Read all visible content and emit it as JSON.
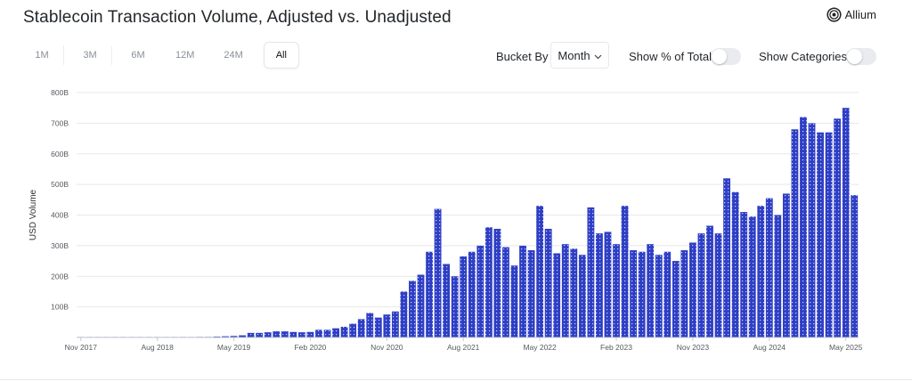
{
  "header": {
    "title": "Stablecoin Transaction Volume, Adjusted vs. Unadjusted",
    "brand": "Allium"
  },
  "toolbar": {
    "ranges": [
      "1M",
      "3M",
      "6M",
      "12M",
      "24M",
      "All"
    ],
    "active_range": "All",
    "bucket_label": "Bucket By",
    "bucket_value": "Month",
    "show_pct_label": "Show % of Total",
    "show_pct_on": false,
    "show_categories_label": "Show Categories",
    "show_categories_on": false
  },
  "colors": {
    "bar": "#2f3fc4",
    "bar_pattern_dot": "#c9d0ff",
    "grid": "#e6e8ec",
    "axis_text": "#555a60",
    "toggle_off": "#e9ebee"
  },
  "chart_data": {
    "type": "bar",
    "ylabel": "USD Volume",
    "xlabel": "",
    "y_tick_labels": [
      "100B",
      "200B",
      "300B",
      "400B",
      "500B",
      "600B",
      "700B",
      "800B"
    ],
    "y_ticks": [
      100,
      200,
      300,
      400,
      500,
      600,
      700,
      800
    ],
    "ylim": [
      0,
      800
    ],
    "unit": "B",
    "x_tick_labels": [
      "Nov 2017",
      "Aug 2018",
      "May 2019",
      "Feb 2020",
      "Nov 2020",
      "Aug 2021",
      "May 2022",
      "Feb 2023",
      "Nov 2023",
      "Aug 2024",
      "May 2025"
    ],
    "grid": true,
    "categories": [
      "Nov 2017",
      "Dec 2017",
      "Jan 2018",
      "Feb 2018",
      "Mar 2018",
      "Apr 2018",
      "May 2018",
      "Jun 2018",
      "Jul 2018",
      "Aug 2018",
      "Sep 2018",
      "Oct 2018",
      "Nov 2018",
      "Dec 2018",
      "Jan 2019",
      "Feb 2019",
      "Mar 2019",
      "Apr 2019",
      "May 2019",
      "Jun 2019",
      "Jul 2019",
      "Aug 2019",
      "Sep 2019",
      "Oct 2019",
      "Nov 2019",
      "Dec 2019",
      "Jan 2020",
      "Feb 2020",
      "Mar 2020",
      "Apr 2020",
      "May 2020",
      "Jun 2020",
      "Jul 2020",
      "Aug 2020",
      "Sep 2020",
      "Oct 2020",
      "Nov 2020",
      "Dec 2020",
      "Jan 2021",
      "Feb 2021",
      "Mar 2021",
      "Apr 2021",
      "May 2021",
      "Jun 2021",
      "Jul 2021",
      "Aug 2021",
      "Sep 2021",
      "Oct 2021",
      "Nov 2021",
      "Dec 2021",
      "Jan 2022",
      "Feb 2022",
      "Mar 2022",
      "Apr 2022",
      "May 2022",
      "Jun 2022",
      "Jul 2022",
      "Aug 2022",
      "Sep 2022",
      "Oct 2022",
      "Nov 2022",
      "Dec 2022",
      "Jan 2023",
      "Feb 2023",
      "Mar 2023",
      "Apr 2023",
      "May 2023",
      "Jun 2023",
      "Jul 2023",
      "Aug 2023",
      "Sep 2023",
      "Oct 2023",
      "Nov 2023",
      "Dec 2023",
      "Jan 2024",
      "Feb 2024",
      "Mar 2024",
      "Apr 2024",
      "May 2024",
      "Jun 2024",
      "Jul 2024",
      "Aug 2024",
      "Sep 2024",
      "Oct 2024",
      "Nov 2024",
      "Dec 2024",
      "Jan 2025",
      "Feb 2025",
      "Mar 2025",
      "Apr 2025",
      "May 2025",
      "Jun 2025"
    ],
    "values": [
      0.5,
      0.5,
      1,
      1,
      1,
      1,
      1,
      1,
      1,
      1,
      1,
      1,
      1,
      1,
      2,
      2,
      3,
      4,
      5,
      7,
      15,
      15,
      17,
      20,
      20,
      18,
      17,
      18,
      25,
      25,
      30,
      35,
      45,
      60,
      80,
      65,
      75,
      85,
      150,
      185,
      205,
      280,
      420,
      240,
      200,
      265,
      280,
      300,
      360,
      355,
      295,
      235,
      300,
      285,
      430,
      355,
      275,
      305,
      290,
      270,
      425,
      340,
      345,
      305,
      430,
      285,
      280,
      305,
      270,
      280,
      250,
      285,
      310,
      340,
      365,
      340,
      520,
      475,
      410,
      395,
      430,
      455,
      400,
      470,
      680,
      720,
      700,
      670,
      670,
      715,
      750,
      465
    ]
  }
}
